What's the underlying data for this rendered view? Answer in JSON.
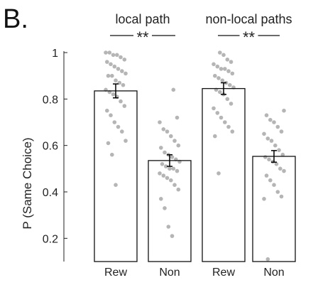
{
  "panel_label": "B.",
  "chart_data": {
    "type": "bar",
    "title": "",
    "xlabel": "",
    "ylabel": "P (Same Choice)",
    "ylim": [
      0.1,
      1.0
    ],
    "yticks": [
      0.2,
      0.4,
      0.6,
      0.8,
      1.0
    ],
    "ytick_labels": [
      "0.2",
      "0.4",
      "0.6",
      "0.8",
      "1"
    ],
    "categories": [
      "Rew",
      "Non",
      "Rew",
      "Non"
    ],
    "values": [
      0.835,
      0.535,
      0.845,
      0.553
    ],
    "error": [
      0.03,
      0.025,
      0.025,
      0.025
    ],
    "bar_fill": "#ffffff",
    "bar_stroke": "#111111",
    "point_color": "#b5b5b5",
    "groups": [
      {
        "label": "local path",
        "significance": "**",
        "bars": [
          0,
          1
        ]
      },
      {
        "label": "non-local paths",
        "significance": "**",
        "bars": [
          2,
          3
        ]
      }
    ],
    "points": [
      [
        1.0,
        1.0,
        0.99,
        0.99,
        0.98,
        0.97,
        0.96,
        0.95,
        0.94,
        0.93,
        0.92,
        0.91,
        0.9,
        0.9,
        0.88,
        0.87,
        0.86,
        0.84,
        0.83,
        0.82,
        0.81,
        0.79,
        0.77,
        0.75,
        0.73,
        0.7,
        0.68,
        0.66,
        0.62,
        0.61,
        0.56,
        0.43
      ],
      [
        0.84,
        0.72,
        0.7,
        0.67,
        0.66,
        0.64,
        0.62,
        0.6,
        0.59,
        0.57,
        0.56,
        0.55,
        0.54,
        0.53,
        0.52,
        0.51,
        0.5,
        0.5,
        0.49,
        0.48,
        0.47,
        0.46,
        0.45,
        0.43,
        0.41,
        0.37,
        0.33,
        0.25,
        0.21
      ],
      [
        1.0,
        0.99,
        0.97,
        0.96,
        0.95,
        0.94,
        0.93,
        0.93,
        0.92,
        0.91,
        0.9,
        0.89,
        0.88,
        0.87,
        0.86,
        0.85,
        0.84,
        0.83,
        0.82,
        0.8,
        0.78,
        0.76,
        0.74,
        0.72,
        0.7,
        0.68,
        0.66,
        0.64,
        0.48
      ],
      [
        0.75,
        0.73,
        0.71,
        0.7,
        0.68,
        0.66,
        0.65,
        0.63,
        0.62,
        0.6,
        0.58,
        0.56,
        0.55,
        0.54,
        0.53,
        0.52,
        0.5,
        0.49,
        0.47,
        0.45,
        0.43,
        0.4,
        0.38,
        0.37,
        0.11
      ]
    ]
  }
}
